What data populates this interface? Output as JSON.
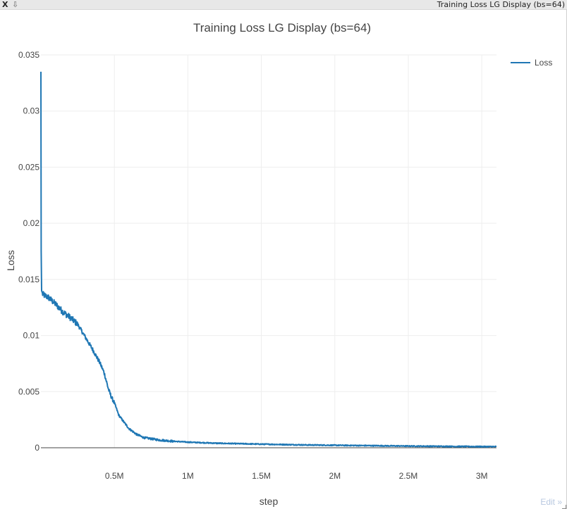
{
  "window": {
    "close_label": "X",
    "download_label": "⇩",
    "title": "Training Loss LG Display (bs=64)"
  },
  "edit_label": "Edit »",
  "chart_data": {
    "type": "line",
    "title": "Training Loss LG Display (bs=64)",
    "xlabel": "step",
    "ylabel": "Loss",
    "xlim": [
      0,
      3100000
    ],
    "ylim": [
      0,
      0.035
    ],
    "x_ticks": [
      500000,
      1000000,
      1500000,
      2000000,
      2500000,
      3000000
    ],
    "x_tick_labels": [
      "0.5M",
      "1M",
      "1.5M",
      "2M",
      "2.5M",
      "3M"
    ],
    "y_ticks": [
      0,
      0.005,
      0.01,
      0.015,
      0.02,
      0.025,
      0.03,
      0.035
    ],
    "y_tick_labels": [
      "0",
      "0.005",
      "0.01",
      "0.015",
      "0.02",
      "0.025",
      "0.03",
      "0.035"
    ],
    "grid": true,
    "legend_position": "top-right",
    "series": [
      {
        "name": "Loss",
        "color": "#1f77b4",
        "x": [
          0,
          2000,
          5000,
          10000,
          20000,
          50000,
          100000,
          150000,
          200000,
          250000,
          300000,
          350000,
          400000,
          430000,
          460000,
          480000,
          500000,
          530000,
          570000,
          600000,
          650000,
          700000,
          800000,
          900000,
          1000000,
          1200000,
          1500000,
          1800000,
          2000000,
          2500000,
          3000000,
          3100000
        ],
        "y": [
          0.0335,
          0.0175,
          0.014,
          0.0137,
          0.0136,
          0.0134,
          0.0128,
          0.0121,
          0.0116,
          0.011,
          0.0099,
          0.0088,
          0.0076,
          0.0067,
          0.0052,
          0.0045,
          0.004,
          0.0029,
          0.0022,
          0.0017,
          0.0012,
          0.0009,
          0.0007,
          0.00058,
          0.0005,
          0.0004,
          0.00032,
          0.00025,
          0.00022,
          0.00015,
          0.0001,
          0.0001
        ]
      }
    ]
  }
}
